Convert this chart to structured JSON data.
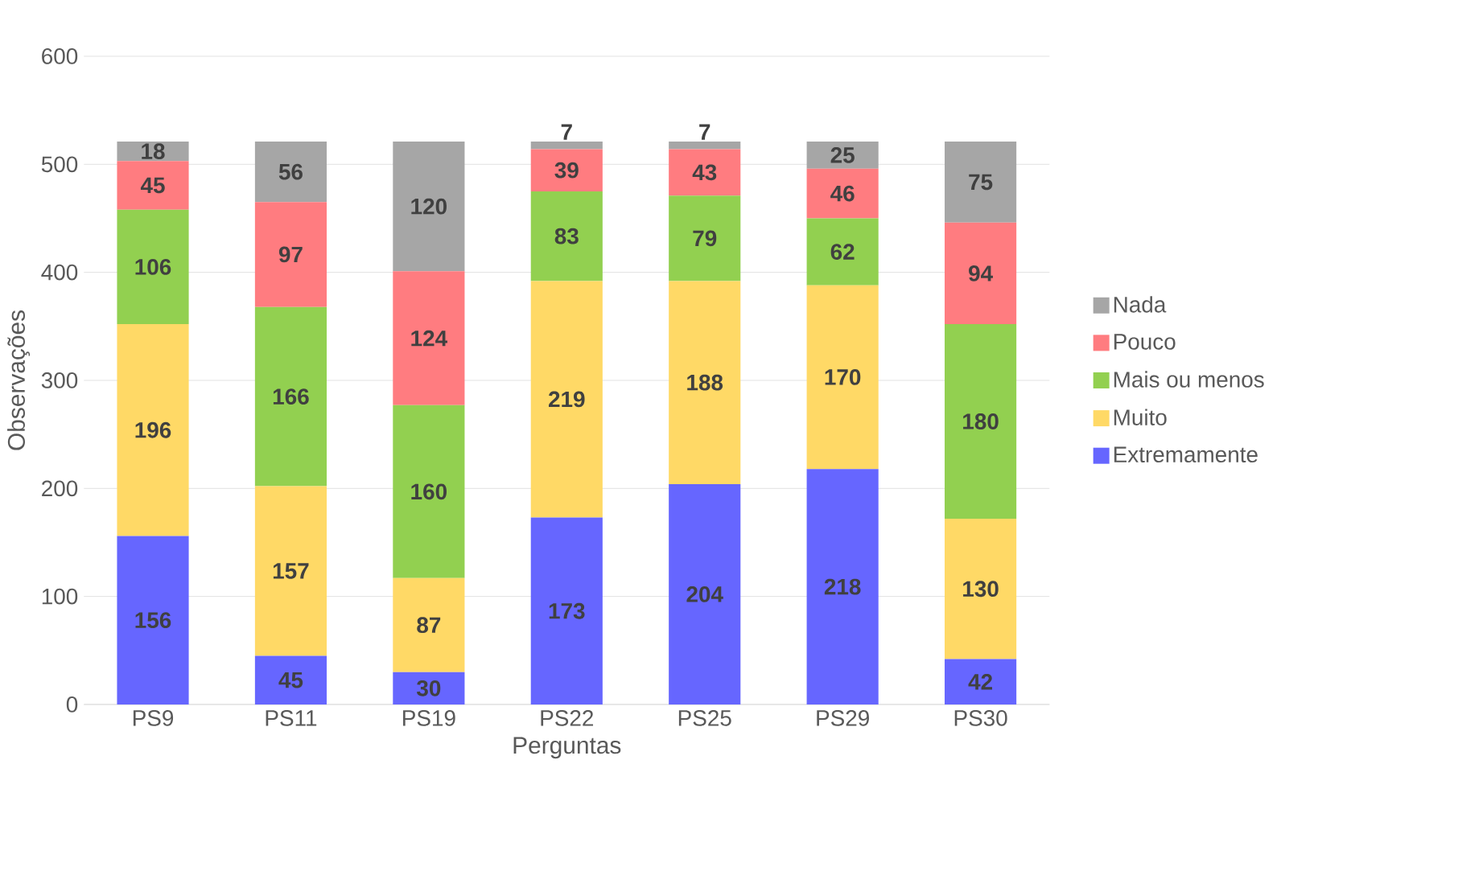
{
  "chart_data": {
    "type": "bar",
    "stacked": true,
    "xlabel": "Perguntas",
    "ylabel": "Observações",
    "categories": [
      "PS9",
      "PS11",
      "PS19",
      "PS22",
      "PS25",
      "PS29",
      "PS30"
    ],
    "series": [
      {
        "name": "Extremamente",
        "color": "#6666ff",
        "values": [
          156,
          45,
          30,
          173,
          204,
          218,
          42
        ]
      },
      {
        "name": "Muito",
        "color": "#ffd966",
        "values": [
          196,
          157,
          87,
          219,
          188,
          170,
          130
        ]
      },
      {
        "name": "Mais ou menos",
        "color": "#92d050",
        "values": [
          106,
          166,
          160,
          83,
          79,
          62,
          180
        ]
      },
      {
        "name": "Pouco",
        "color": "#ff7c80",
        "values": [
          45,
          97,
          124,
          39,
          43,
          46,
          94
        ]
      },
      {
        "name": "Nada",
        "color": "#a6a6a6",
        "values": [
          18,
          56,
          120,
          7,
          7,
          25,
          75
        ]
      }
    ],
    "ylim": [
      0,
      600
    ],
    "yticks": [
      0,
      100,
      200,
      300,
      400,
      500,
      600
    ],
    "grid": "y",
    "legend": "right",
    "data_labels": true
  }
}
